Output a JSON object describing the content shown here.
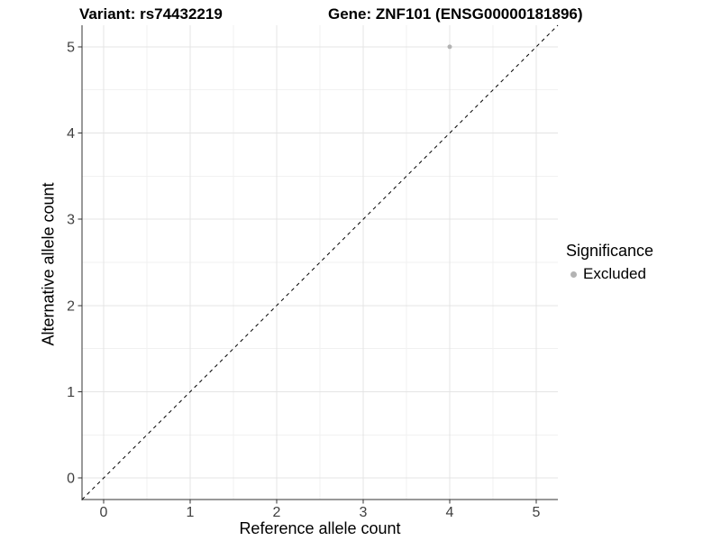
{
  "chart_data": {
    "type": "scatter",
    "titles": {
      "left": "Variant: rs74432219",
      "right": "Gene: ZNF101 (ENSG00000181896)"
    },
    "xlabel": "Reference allele count",
    "ylabel": "Alternative allele count",
    "xlim": [
      -0.25,
      5.25
    ],
    "ylim": [
      -0.25,
      5.25
    ],
    "x_ticks": [
      0,
      1,
      2,
      3,
      4,
      5
    ],
    "y_ticks": [
      0,
      1,
      2,
      3,
      4,
      5
    ],
    "x_minor": [
      0.5,
      1.5,
      2.5,
      3.5,
      4.5
    ],
    "y_minor": [
      0.5,
      1.5,
      2.5,
      3.5,
      4.5
    ],
    "grid": {
      "major": true,
      "minor": true
    },
    "identity_line": {
      "style": "dashed",
      "color": "#000000",
      "from": -0.25,
      "to": 5.25
    },
    "series": [
      {
        "name": "Excluded",
        "color": "#b3b3b3",
        "point_radius": 2.5,
        "points": [
          {
            "x": 4,
            "y": 5
          }
        ]
      }
    ],
    "legend": {
      "title": "Significance",
      "position": "right",
      "items": [
        {
          "label": "Excluded",
          "color": "#b3b3b3"
        }
      ]
    },
    "colors": {
      "grid_major": "#e4e4e4",
      "grid_minor": "#f1f1f1",
      "axis_line": "#333333",
      "tick_text": "#404040",
      "title_text": "#000000"
    }
  }
}
